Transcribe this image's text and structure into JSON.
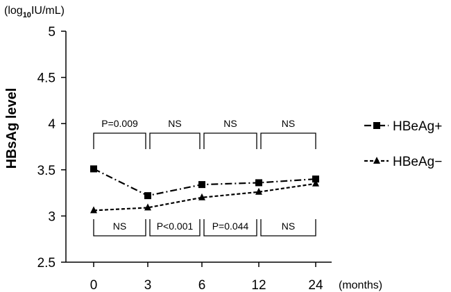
{
  "chart_data": {
    "type": "line",
    "ylabel": "HBsAg level",
    "yunit_prefix": "(log",
    "yunit_sub": "10",
    "yunit_suffix": "IU/mL)",
    "xunit": "(months)",
    "categories": [
      "0",
      "3",
      "6",
      "12",
      "24"
    ],
    "ylim": [
      2.5,
      5
    ],
    "yticks": [
      "2.5",
      "3",
      "3.5",
      "4",
      "4.5",
      "5"
    ],
    "grid": false,
    "legend_position": "right",
    "series": [
      {
        "name": "HBeAg+",
        "marker": "square",
        "line_style": "dash-dot",
        "values": [
          3.51,
          3.22,
          3.34,
          3.36,
          3.4
        ]
      },
      {
        "name": "HBeAg−",
        "marker": "triangle",
        "line_style": "dashed",
        "values": [
          3.06,
          3.09,
          3.2,
          3.26,
          3.35
        ]
      }
    ],
    "annotations_top": [
      "P=0.009",
      "NS",
      "NS",
      "NS"
    ],
    "annotations_bottom": [
      "NS",
      "P<0.001",
      "P=0.044",
      "NS"
    ]
  }
}
